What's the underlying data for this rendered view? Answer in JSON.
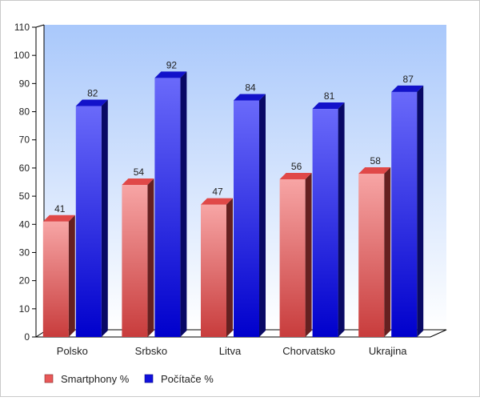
{
  "chart_data": {
    "type": "bar",
    "categories": [
      "Polsko",
      "Srbsko",
      "Litva",
      "Chorvatsko",
      "Ukrajina"
    ],
    "series": [
      {
        "name": "Smartphony %",
        "values": [
          41,
          54,
          47,
          56,
          58
        ],
        "color": "#e04848"
      },
      {
        "name": "Počítače %",
        "values": [
          82,
          92,
          84,
          81,
          87
        ],
        "color": "#1414e0"
      }
    ],
    "ylim": [
      0,
      110
    ],
    "yticks": [
      0,
      10,
      20,
      30,
      40,
      50,
      60,
      70,
      80,
      90,
      100,
      110
    ],
    "xlabel": "",
    "ylabel": "",
    "grid": false,
    "style": "3d",
    "legend": "bottom-left",
    "background": "#a9c8fb"
  }
}
